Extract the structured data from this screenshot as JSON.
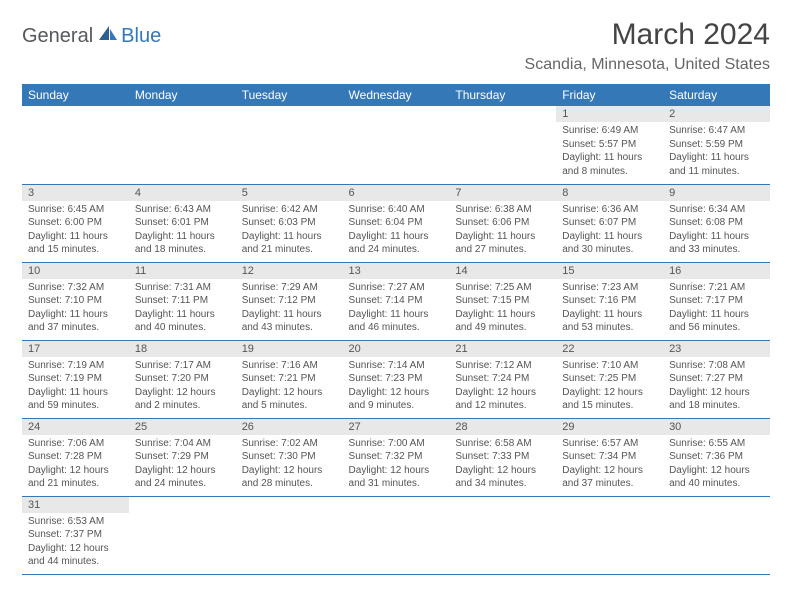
{
  "logo": {
    "text1": "General",
    "text2": "Blue"
  },
  "title": "March 2024",
  "location": "Scandia, Minnesota, United States",
  "colors": {
    "brand_blue": "#3578b8",
    "header_text": "#ffffff",
    "body_text": "#555555",
    "daynum_bg": "#e8e8e8",
    "logo_gray": "#55595c"
  },
  "weekdays": [
    "Sunday",
    "Monday",
    "Tuesday",
    "Wednesday",
    "Thursday",
    "Friday",
    "Saturday"
  ],
  "weeks": [
    [
      null,
      null,
      null,
      null,
      null,
      {
        "n": "1",
        "sr": "6:49 AM",
        "ss": "5:57 PM",
        "dl": "11 hours and 8 minutes."
      },
      {
        "n": "2",
        "sr": "6:47 AM",
        "ss": "5:59 PM",
        "dl": "11 hours and 11 minutes."
      }
    ],
    [
      {
        "n": "3",
        "sr": "6:45 AM",
        "ss": "6:00 PM",
        "dl": "11 hours and 15 minutes."
      },
      {
        "n": "4",
        "sr": "6:43 AM",
        "ss": "6:01 PM",
        "dl": "11 hours and 18 minutes."
      },
      {
        "n": "5",
        "sr": "6:42 AM",
        "ss": "6:03 PM",
        "dl": "11 hours and 21 minutes."
      },
      {
        "n": "6",
        "sr": "6:40 AM",
        "ss": "6:04 PM",
        "dl": "11 hours and 24 minutes."
      },
      {
        "n": "7",
        "sr": "6:38 AM",
        "ss": "6:06 PM",
        "dl": "11 hours and 27 minutes."
      },
      {
        "n": "8",
        "sr": "6:36 AM",
        "ss": "6:07 PM",
        "dl": "11 hours and 30 minutes."
      },
      {
        "n": "9",
        "sr": "6:34 AM",
        "ss": "6:08 PM",
        "dl": "11 hours and 33 minutes."
      }
    ],
    [
      {
        "n": "10",
        "sr": "7:32 AM",
        "ss": "7:10 PM",
        "dl": "11 hours and 37 minutes."
      },
      {
        "n": "11",
        "sr": "7:31 AM",
        "ss": "7:11 PM",
        "dl": "11 hours and 40 minutes."
      },
      {
        "n": "12",
        "sr": "7:29 AM",
        "ss": "7:12 PM",
        "dl": "11 hours and 43 minutes."
      },
      {
        "n": "13",
        "sr": "7:27 AM",
        "ss": "7:14 PM",
        "dl": "11 hours and 46 minutes."
      },
      {
        "n": "14",
        "sr": "7:25 AM",
        "ss": "7:15 PM",
        "dl": "11 hours and 49 minutes."
      },
      {
        "n": "15",
        "sr": "7:23 AM",
        "ss": "7:16 PM",
        "dl": "11 hours and 53 minutes."
      },
      {
        "n": "16",
        "sr": "7:21 AM",
        "ss": "7:17 PM",
        "dl": "11 hours and 56 minutes."
      }
    ],
    [
      {
        "n": "17",
        "sr": "7:19 AM",
        "ss": "7:19 PM",
        "dl": "11 hours and 59 minutes."
      },
      {
        "n": "18",
        "sr": "7:17 AM",
        "ss": "7:20 PM",
        "dl": "12 hours and 2 minutes."
      },
      {
        "n": "19",
        "sr": "7:16 AM",
        "ss": "7:21 PM",
        "dl": "12 hours and 5 minutes."
      },
      {
        "n": "20",
        "sr": "7:14 AM",
        "ss": "7:23 PM",
        "dl": "12 hours and 9 minutes."
      },
      {
        "n": "21",
        "sr": "7:12 AM",
        "ss": "7:24 PM",
        "dl": "12 hours and 12 minutes."
      },
      {
        "n": "22",
        "sr": "7:10 AM",
        "ss": "7:25 PM",
        "dl": "12 hours and 15 minutes."
      },
      {
        "n": "23",
        "sr": "7:08 AM",
        "ss": "7:27 PM",
        "dl": "12 hours and 18 minutes."
      }
    ],
    [
      {
        "n": "24",
        "sr": "7:06 AM",
        "ss": "7:28 PM",
        "dl": "12 hours and 21 minutes."
      },
      {
        "n": "25",
        "sr": "7:04 AM",
        "ss": "7:29 PM",
        "dl": "12 hours and 24 minutes."
      },
      {
        "n": "26",
        "sr": "7:02 AM",
        "ss": "7:30 PM",
        "dl": "12 hours and 28 minutes."
      },
      {
        "n": "27",
        "sr": "7:00 AM",
        "ss": "7:32 PM",
        "dl": "12 hours and 31 minutes."
      },
      {
        "n": "28",
        "sr": "6:58 AM",
        "ss": "7:33 PM",
        "dl": "12 hours and 34 minutes."
      },
      {
        "n": "29",
        "sr": "6:57 AM",
        "ss": "7:34 PM",
        "dl": "12 hours and 37 minutes."
      },
      {
        "n": "30",
        "sr": "6:55 AM",
        "ss": "7:36 PM",
        "dl": "12 hours and 40 minutes."
      }
    ],
    [
      {
        "n": "31",
        "sr": "6:53 AM",
        "ss": "7:37 PM",
        "dl": "12 hours and 44 minutes."
      },
      null,
      null,
      null,
      null,
      null,
      null
    ]
  ],
  "labels": {
    "sunrise": "Sunrise:",
    "sunset": "Sunset:",
    "daylight": "Daylight:"
  }
}
